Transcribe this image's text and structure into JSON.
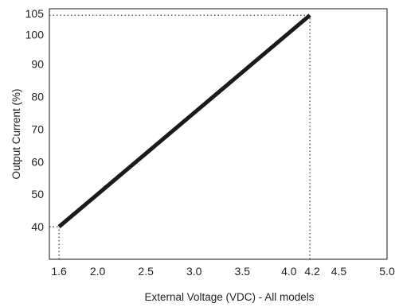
{
  "chart_data": {
    "type": "line",
    "title": "",
    "xlabel": "External Voltage (VDC) - All models",
    "ylabel": "Output Current (%)",
    "xlim": [
      1.5,
      5.0
    ],
    "ylim": [
      30,
      107
    ],
    "x_ticks": [
      {
        "value": 1.6,
        "label": "1.6"
      },
      {
        "value": 2.0,
        "label": "2.0"
      },
      {
        "value": 2.5,
        "label": "2.5"
      },
      {
        "value": 3.0,
        "label": "3.0"
      },
      {
        "value": 3.5,
        "label": "3.5"
      },
      {
        "value": 4.0,
        "label": "4.0"
      },
      {
        "value": 4.2,
        "label": "4.2"
      },
      {
        "value": 4.5,
        "label": "4.5"
      },
      {
        "value": 5.0,
        "label": "5.0"
      }
    ],
    "y_ticks": [
      {
        "value": 40,
        "label": "40"
      },
      {
        "value": 50,
        "label": "50"
      },
      {
        "value": 60,
        "label": "60"
      },
      {
        "value": 70,
        "label": "70"
      },
      {
        "value": 80,
        "label": "80"
      },
      {
        "value": 90,
        "label": "90"
      },
      {
        "value": 100,
        "label": "100"
      },
      {
        "value": 105,
        "label": "105"
      }
    ],
    "series": [
      {
        "x": [
          1.6,
          4.2
        ],
        "y": [
          40,
          105
        ],
        "color": "#1a1a1a"
      }
    ],
    "reference_lines": [
      {
        "orientation": "vertical",
        "x": 1.6,
        "from_y": 30,
        "to_y": 40
      },
      {
        "orientation": "vertical",
        "x": 4.2,
        "from_y": 30,
        "to_y": 105
      },
      {
        "orientation": "horizontal",
        "y": 40,
        "from_x": 1.5,
        "to_x": 1.6
      },
      {
        "orientation": "horizontal",
        "y": 105,
        "from_x": 1.5,
        "to_x": 4.2
      }
    ],
    "grid": false,
    "legend": "none"
  }
}
